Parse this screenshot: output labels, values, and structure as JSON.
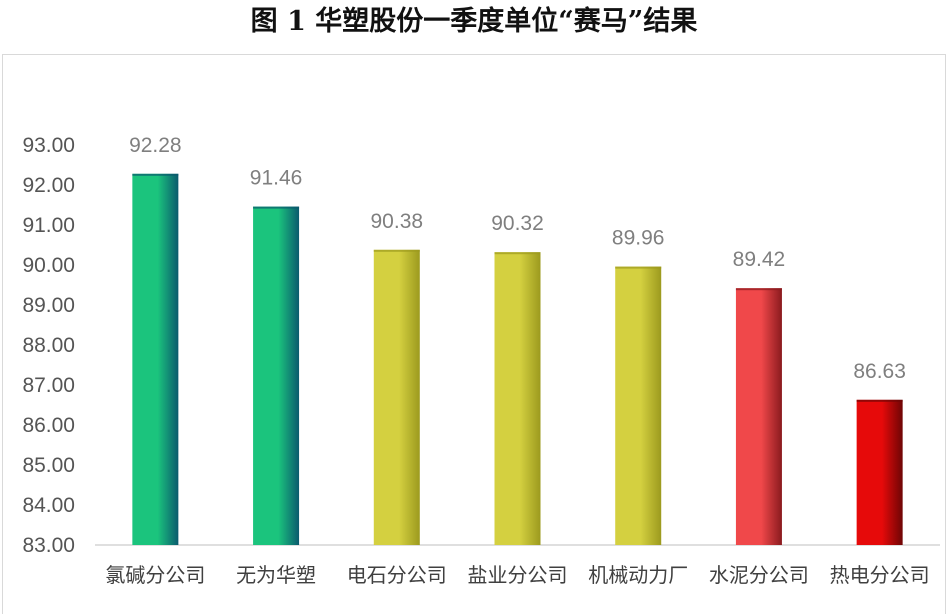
{
  "figure": {
    "title": "图 1  华塑股份一季度单位“赛马”结果"
  },
  "chart_data": {
    "type": "bar",
    "title": "图 1  华塑股份一季度单位“赛马”结果",
    "xlabel": "",
    "ylabel": "",
    "ylim": [
      83,
      93
    ],
    "ytick_step": 1,
    "ytick_labels": [
      "83.00",
      "84.00",
      "85.00",
      "86.00",
      "87.00",
      "88.00",
      "89.00",
      "90.00",
      "91.00",
      "92.00",
      "93.00"
    ],
    "categories": [
      "氯碱分公司",
      "无为华塑",
      "电石分公司",
      "盐业分公司",
      "机械动力厂",
      "水泥分公司",
      "热电分公司"
    ],
    "values": [
      92.28,
      91.46,
      90.38,
      90.32,
      89.96,
      89.42,
      86.63
    ],
    "value_labels": [
      "92.28",
      "91.46",
      "90.38",
      "90.32",
      "89.96",
      "89.42",
      "86.63"
    ],
    "bar_colors": [
      {
        "front": "#1bc47d",
        "side": "#0a5a6e"
      },
      {
        "front": "#1bc47d",
        "side": "#0a5a6e"
      },
      {
        "front": "#d4d040",
        "side": "#9c9a1e"
      },
      {
        "front": "#d4d040",
        "side": "#9c9a1e"
      },
      {
        "front": "#d4d040",
        "side": "#9c9a1e"
      },
      {
        "front": "#f0484a",
        "side": "#8a1a1e"
      },
      {
        "front": "#e60a0a",
        "side": "#6e0505"
      }
    ],
    "grid": false,
    "legend": "none"
  }
}
